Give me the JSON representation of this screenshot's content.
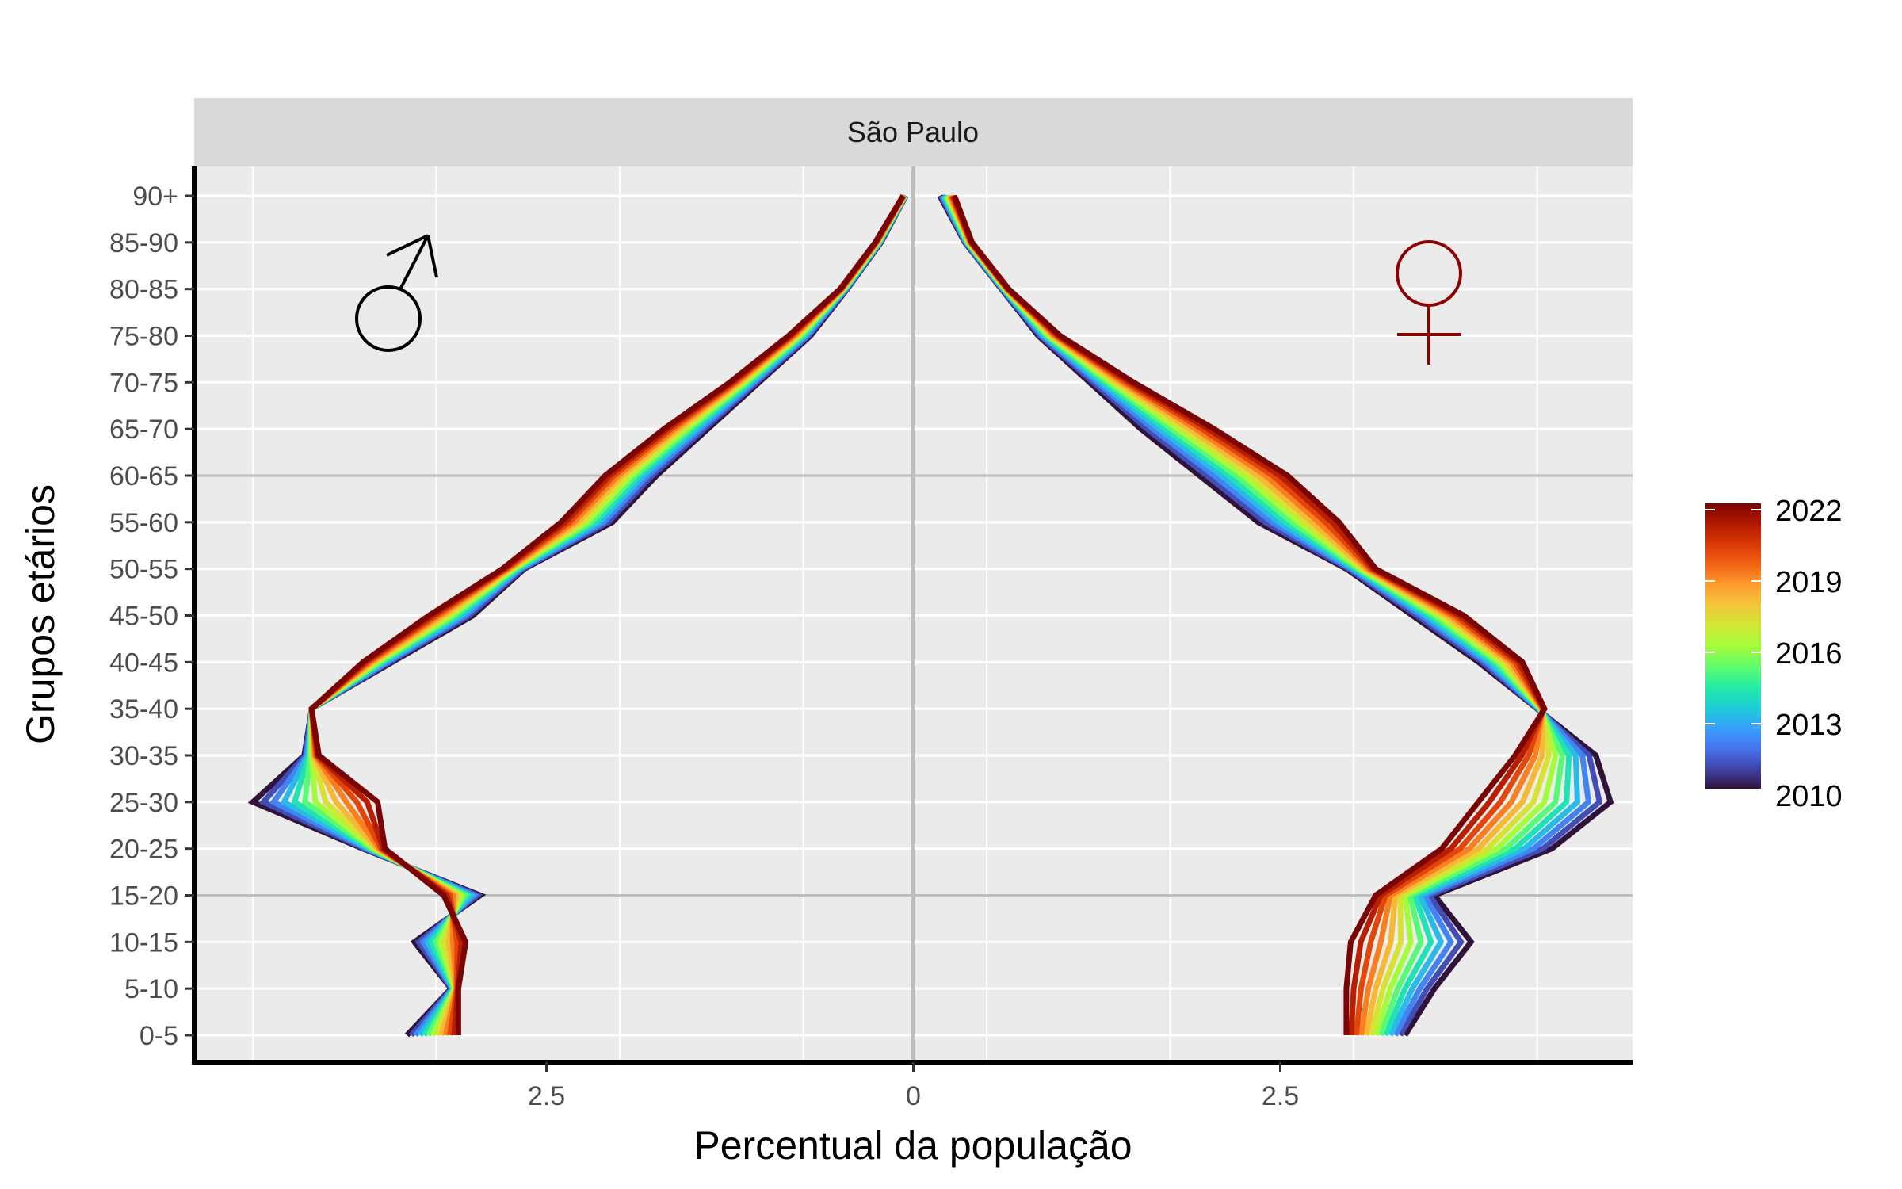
{
  "chart_data": {
    "type": "line",
    "facet_label": "São Paulo",
    "xlabel": "Percentual da população",
    "ylabel": "Grupos etários",
    "x_ticks": [
      {
        "value": -2.5,
        "label": "2.5"
      },
      {
        "value": 0,
        "label": "0"
      },
      {
        "value": 2.5,
        "label": "2.5"
      }
    ],
    "xlim": [
      -4.9,
      4.9
    ],
    "age_groups": [
      "0-5",
      "5-10",
      "10-15",
      "15-20",
      "20-25",
      "25-30",
      "30-35",
      "35-40",
      "40-45",
      "45-50",
      "50-55",
      "55-60",
      "60-65",
      "65-70",
      "70-75",
      "75-80",
      "80-85",
      "85-90",
      "90+"
    ],
    "reference_lines_at": [
      "15-20",
      "60-65"
    ],
    "sex_symbols": {
      "male": "♂",
      "female": "♀",
      "male_color": "#000000",
      "female_color": "#8b0000"
    },
    "legend": {
      "title": "",
      "min": 2010,
      "max": 2022,
      "ticks": [
        2010,
        2013,
        2016,
        2019,
        2022
      ],
      "placement": "right"
    },
    "colorscale": [
      "#30123b",
      "#4145ab",
      "#4675ed",
      "#39a2fc",
      "#1bcfd4",
      "#24eca6",
      "#61fc6c",
      "#a4fc3b",
      "#d1e834",
      "#f3c63a",
      "#fe9b2d",
      "#f36315",
      "#d93806",
      "#b11901",
      "#7a0403"
    ],
    "series_note_years": [
      2010,
      2022
    ],
    "series": [
      {
        "name": "2010",
        "male": [
          -3.45,
          -3.15,
          -3.4,
          -2.95,
          -3.75,
          -4.5,
          -4.15,
          -4.1,
          -3.55,
          -3.0,
          -2.65,
          -2.05,
          -1.75,
          -1.4,
          -1.05,
          -0.7,
          -0.45,
          -0.22,
          -0.05
        ],
        "female": [
          3.35,
          3.55,
          3.8,
          3.55,
          4.35,
          4.75,
          4.65,
          4.25,
          3.85,
          3.4,
          2.95,
          2.35,
          1.95,
          1.55,
          1.2,
          0.85,
          0.6,
          0.35,
          0.18
        ]
      },
      {
        "name": "2022",
        "male": [
          -3.1,
          -3.1,
          -3.05,
          -3.2,
          -3.6,
          -3.65,
          -4.05,
          -4.1,
          -3.75,
          -3.3,
          -2.8,
          -2.4,
          -2.1,
          -1.7,
          -1.25,
          -0.85,
          -0.5,
          -0.26,
          -0.07
        ],
        "female": [
          2.95,
          2.95,
          2.98,
          3.15,
          3.6,
          3.85,
          4.1,
          4.3,
          4.15,
          3.75,
          3.15,
          2.9,
          2.55,
          2.05,
          1.5,
          1.0,
          0.65,
          0.4,
          0.28
        ]
      }
    ]
  }
}
